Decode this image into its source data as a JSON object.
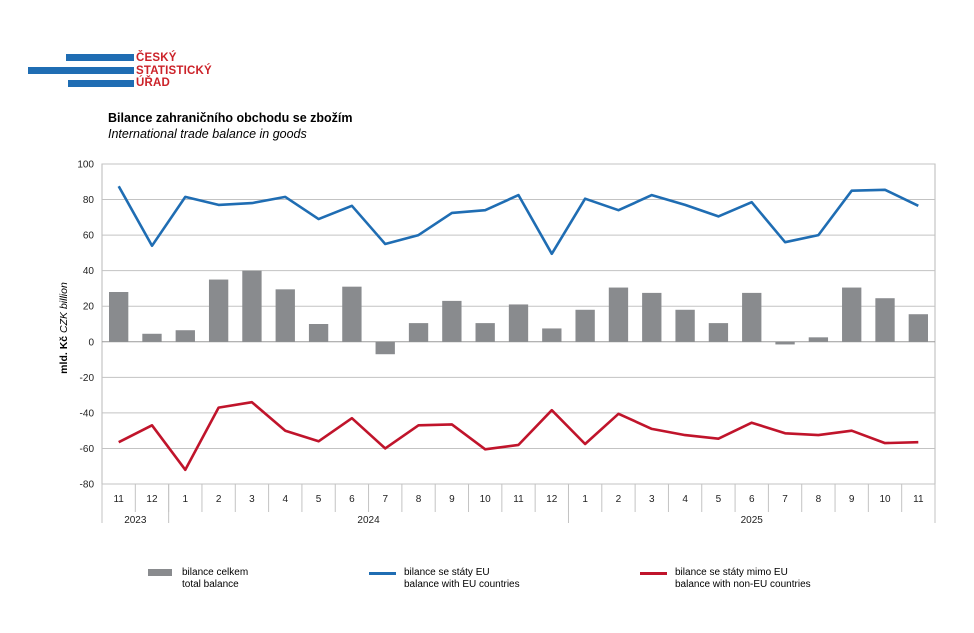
{
  "logo": {
    "line1": "ČESKÝ",
    "line2": "STATISTICKÝ",
    "line3": "ÚŘAD",
    "color_blue": "#1f6db3",
    "color_red": "#cc2229"
  },
  "chart_data": {
    "type": "bar+line",
    "title": "Bilance zahraničního obchodu se zbožím",
    "subtitle": "International trade balance in goods",
    "ylabel_cz": "mld. Kč",
    "ylabel_en": "CZK billion",
    "ylim": [
      -80,
      100
    ],
    "yticks": [
      100,
      80,
      60,
      40,
      20,
      0,
      -20,
      -40,
      -60,
      -80
    ],
    "categories": [
      "11",
      "12",
      "1",
      "2",
      "3",
      "4",
      "5",
      "6",
      "7",
      "8",
      "9",
      "10",
      "11",
      "12",
      "1",
      "2",
      "3",
      "4",
      "5",
      "6",
      "7",
      "8",
      "9",
      "10",
      "11"
    ],
    "years": [
      {
        "label": "2023",
        "start": 0,
        "end": 1
      },
      {
        "label": "2024",
        "start": 2,
        "end": 13
      },
      {
        "label": "2025",
        "start": 14,
        "end": 24
      }
    ],
    "series": [
      {
        "name": "bilance celkem",
        "name_en": "total balance",
        "type": "bar",
        "color": "#898b8e",
        "values": [
          28,
          4.5,
          6.5,
          35,
          40,
          29.5,
          10,
          31,
          -7,
          10.5,
          23,
          10.5,
          21,
          7.5,
          18,
          30.5,
          27.5,
          18,
          10.5,
          27.5,
          -1.5,
          2.5,
          30.5,
          24.5,
          15.5
        ]
      },
      {
        "name": "bilance se státy EU",
        "name_en": "balance with EU countries",
        "type": "line",
        "color": "#1f6db3",
        "values": [
          87.5,
          54,
          81.5,
          77,
          78,
          81.5,
          69,
          76.5,
          55,
          60,
          72.5,
          74,
          82.5,
          49.5,
          80.5,
          74,
          82.5,
          77,
          70.5,
          78.5,
          56,
          60,
          85,
          85.5,
          76.5
        ]
      },
      {
        "name": "bilance se státy mimo EU",
        "name_en": "balance with non-EU countries",
        "type": "line",
        "color": "#c0142b",
        "values": [
          -56.5,
          -47,
          -72,
          -37,
          -34,
          -50,
          -56,
          -43,
          -60,
          -47,
          -46.5,
          -60.5,
          -58,
          -38.5,
          -57.5,
          -40.5,
          -49,
          -52.5,
          -54.5,
          -45.5,
          -51.5,
          -52.5,
          -50,
          -57,
          -56.5
        ]
      }
    ]
  }
}
